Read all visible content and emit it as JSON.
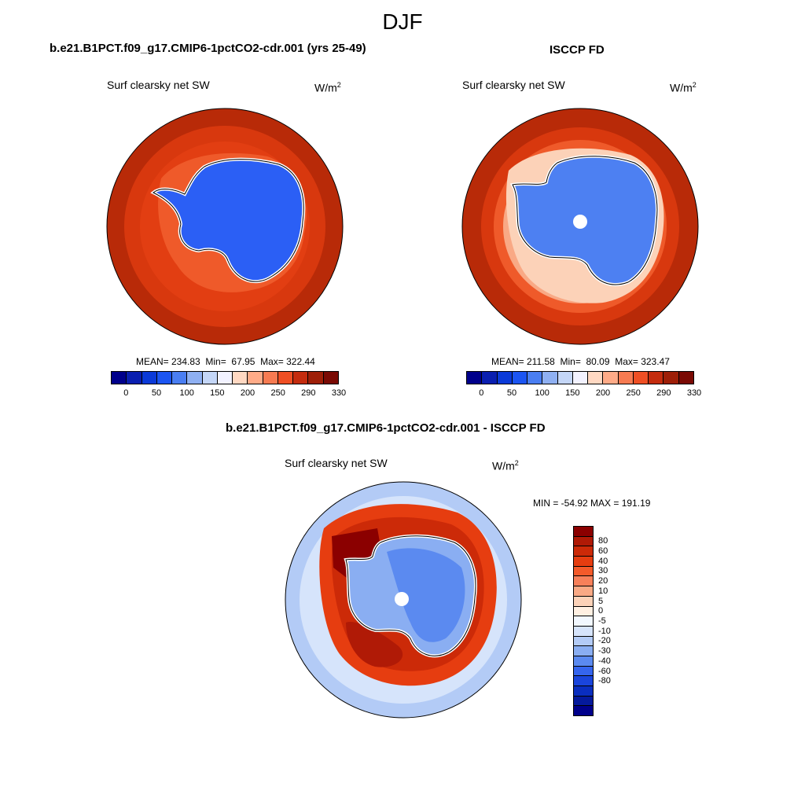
{
  "season": "DJF",
  "panels": {
    "model": {
      "title": "b.e21.B1PCT.f09_g17.CMIP6-1pctCO2-cdr.001 (yrs 25-49)",
      "field": "Surf clearsky net SW",
      "units": "W/m",
      "units_sup": "2",
      "stats": "MEAN= 234.83  Min=  67.95  Max= 322.44"
    },
    "obs": {
      "title": "ISCCP FD",
      "field": "Surf clearsky net SW",
      "units": "W/m",
      "units_sup": "2",
      "stats": "MEAN= 211.58  Min=  80.09  Max= 323.47"
    },
    "diff": {
      "title": "b.e21.B1PCT.f09_g17.CMIP6-1pctCO2-cdr.001 - ISCCP FD",
      "field": "Surf clearsky net SW",
      "units": "W/m",
      "units_sup": "2",
      "stats": "MIN = -54.92 MAX = 191.19"
    }
  },
  "colorbar_abs": {
    "colors": [
      "#00008b",
      "#0a1fb0",
      "#0b3ad8",
      "#1c55f2",
      "#4a7ef2",
      "#8fb0f2",
      "#c4d6f7",
      "#f2f2ff",
      "#ffd8c2",
      "#ffab88",
      "#f77b52",
      "#ef4f24",
      "#c42c0e",
      "#9e1f08",
      "#7a0a04"
    ],
    "ticks": [
      "0",
      "50",
      "100",
      "150",
      "200",
      "250",
      "290",
      "330"
    ]
  },
  "colorbar_diff": {
    "colors": [
      "#8b0000",
      "#b01a06",
      "#cc2a08",
      "#e63d10",
      "#f45a2a",
      "#f7805a",
      "#f9a985",
      "#fcd2b8",
      "#fff0e2",
      "#f2f8ff",
      "#d6e4fb",
      "#b3cbf6",
      "#8aaef2",
      "#5b8af0",
      "#3565ee",
      "#1a45dc",
      "#0a2ebf",
      "#051a9c",
      "#00008b"
    ],
    "labels": [
      "80",
      "60",
      "40",
      "30",
      "20",
      "10",
      "5",
      "0",
      "-5",
      "-10",
      "-20",
      "-30",
      "-40",
      "-60",
      "-80"
    ]
  }
}
